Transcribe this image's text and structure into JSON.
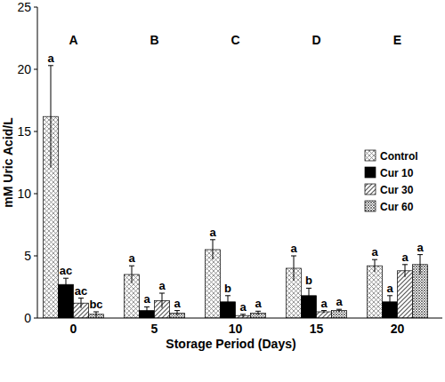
{
  "chart_data": {
    "type": "bar",
    "x_label": "Storage Period (Days)",
    "y_label": "mM Uric Acid/L",
    "categories": [
      "0",
      "5",
      "10",
      "15",
      "20"
    ],
    "group_labels": [
      "A",
      "B",
      "C",
      "D",
      "E"
    ],
    "series": [
      {
        "name": "Control",
        "color": "#808080",
        "values": [
          16.2,
          3.5,
          5.5,
          4.0,
          4.2
        ],
        "errors": [
          4.1,
          0.7,
          0.8,
          1.0,
          0.5
        ],
        "letters": [
          "a",
          "a",
          "a",
          "a",
          "a"
        ]
      },
      {
        "name": "Cur 10",
        "color": "#000000",
        "values": [
          2.7,
          0.6,
          1.3,
          1.8,
          1.3
        ],
        "errors": [
          0.5,
          0.3,
          0.5,
          0.6,
          0.5
        ],
        "letters": [
          "ac",
          "a",
          "b",
          "b",
          "a"
        ]
      },
      {
        "name": "Cur 30",
        "color": "#595959",
        "values": [
          1.2,
          1.4,
          0.2,
          0.5,
          3.8
        ],
        "errors": [
          0.4,
          0.6,
          0.1,
          0.1,
          0.5
        ],
        "letters": [
          "ac",
          "a",
          "a",
          "a",
          "a"
        ]
      },
      {
        "name": "Cur 60",
        "color": "#595959",
        "values": [
          0.3,
          0.4,
          0.4,
          0.6,
          4.3
        ],
        "errors": [
          0.2,
          0.2,
          0.15,
          0.1,
          0.8
        ],
        "letters": [
          "bc",
          "a",
          "a",
          "a",
          "a"
        ]
      }
    ],
    "ylim": [
      0,
      25
    ],
    "yticks": [
      0,
      5,
      10,
      15,
      20,
      25
    ],
    "grid": false,
    "legend": "right"
  }
}
